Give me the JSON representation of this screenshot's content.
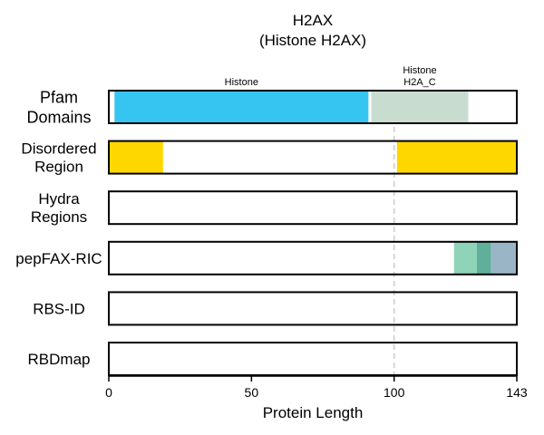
{
  "title": {
    "line1": "H2AX",
    "line2": "(Histone H2AX)"
  },
  "axis": {
    "label": "Protein Length",
    "min": 0,
    "max": 143,
    "ticks": [
      0,
      50,
      100,
      143
    ],
    "guide_line_at": 100,
    "guide_color": "#cccccc"
  },
  "tracks": [
    {
      "id": "pfam",
      "label_lines": [
        "Pfam",
        "Domains"
      ],
      "segments": [
        {
          "start": 2,
          "end": 91,
          "color": "#36c5f0",
          "label_lines": [
            "Histone"
          ]
        },
        {
          "start": 92,
          "end": 126,
          "color": "#c8ddd0",
          "label_lines": [
            "Histone",
            "H2A_C"
          ]
        }
      ]
    },
    {
      "id": "disordered",
      "label_lines": [
        "Disordered",
        "Region"
      ],
      "segments": [
        {
          "start": 0,
          "end": 19,
          "color": "#ffd700"
        },
        {
          "start": 101,
          "end": 143,
          "color": "#ffd700"
        }
      ]
    },
    {
      "id": "hydra",
      "label_lines": [
        "Hydra",
        "Regions"
      ],
      "segments": []
    },
    {
      "id": "pepfax",
      "label_lines": [
        "pepFAX-RIC"
      ],
      "segments": [
        {
          "start": 121,
          "end": 129,
          "color": "#8fd3b9"
        },
        {
          "start": 129,
          "end": 134,
          "color": "#5faf9b"
        },
        {
          "start": 134,
          "end": 143,
          "color": "#9ab5c6"
        }
      ]
    },
    {
      "id": "rbsid",
      "label_lines": [
        "RBS-ID"
      ],
      "segments": []
    },
    {
      "id": "rbdmap",
      "label_lines": [
        "RBDmap"
      ],
      "segments": []
    }
  ]
}
